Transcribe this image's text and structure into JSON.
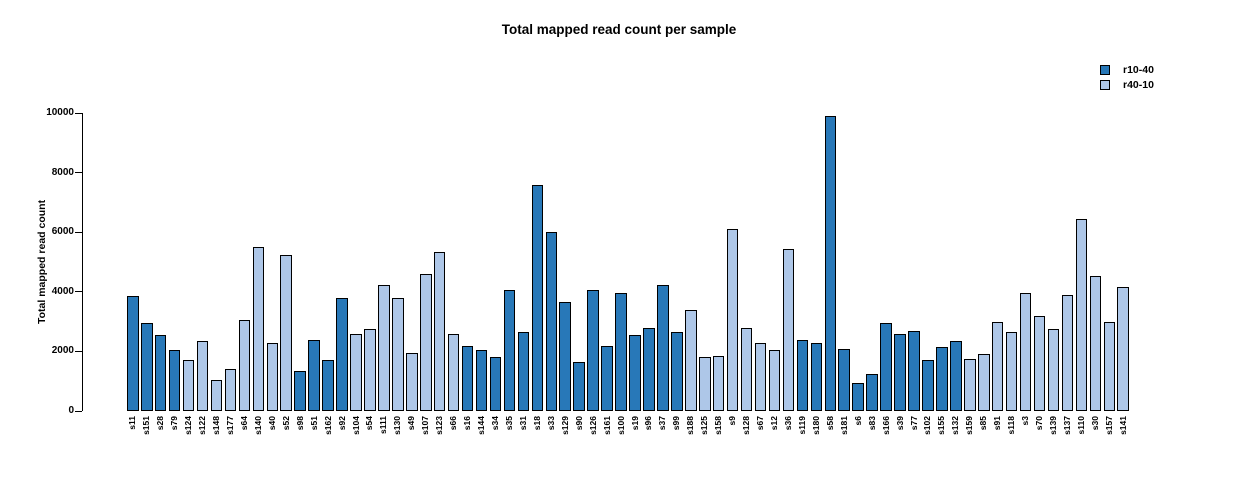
{
  "chart_data": {
    "type": "bar",
    "title": "Total mapped read count per sample",
    "ylabel": "Total mapped read count",
    "xlabel": "",
    "ylim": [
      0,
      10000
    ],
    "yticks": [
      0,
      2000,
      4000,
      6000,
      8000,
      10000
    ],
    "grid": false,
    "legend_position": "top-right",
    "series": [
      {
        "name": "r10-40",
        "color": "#2878b8"
      },
      {
        "name": "r40-10",
        "color": "#aec7e8"
      }
    ],
    "bars": [
      {
        "label": "s11",
        "value": 3850,
        "series": "r10-40"
      },
      {
        "label": "s151",
        "value": 2950,
        "series": "r10-40"
      },
      {
        "label": "s28",
        "value": 2550,
        "series": "r10-40"
      },
      {
        "label": "s79",
        "value": 2050,
        "series": "r10-40"
      },
      {
        "label": "s124",
        "value": 1700,
        "series": "r40-10"
      },
      {
        "label": "s122",
        "value": 2350,
        "series": "r40-10"
      },
      {
        "label": "s148",
        "value": 1050,
        "series": "r40-10"
      },
      {
        "label": "s177",
        "value": 1400,
        "series": "r40-10"
      },
      {
        "label": "s64",
        "value": 3050,
        "series": "r40-10"
      },
      {
        "label": "s140",
        "value": 5500,
        "series": "r40-10"
      },
      {
        "label": "s40",
        "value": 2300,
        "series": "r40-10"
      },
      {
        "label": "s52",
        "value": 5250,
        "series": "r40-10"
      },
      {
        "label": "s98",
        "value": 1350,
        "series": "r10-40"
      },
      {
        "label": "s51",
        "value": 2400,
        "series": "r10-40"
      },
      {
        "label": "s162",
        "value": 1700,
        "series": "r10-40"
      },
      {
        "label": "s92",
        "value": 3800,
        "series": "r10-40"
      },
      {
        "label": "s104",
        "value": 2600,
        "series": "r40-10"
      },
      {
        "label": "s54",
        "value": 2750,
        "series": "r40-10"
      },
      {
        "label": "s111",
        "value": 4250,
        "series": "r40-10"
      },
      {
        "label": "s130",
        "value": 3800,
        "series": "r40-10"
      },
      {
        "label": "s49",
        "value": 1950,
        "series": "r40-10"
      },
      {
        "label": "s107",
        "value": 4600,
        "series": "r40-10"
      },
      {
        "label": "s123",
        "value": 5350,
        "series": "r40-10"
      },
      {
        "label": "s66",
        "value": 2600,
        "series": "r40-10"
      },
      {
        "label": "s16",
        "value": 2200,
        "series": "r10-40"
      },
      {
        "label": "s144",
        "value": 2050,
        "series": "r10-40"
      },
      {
        "label": "s34",
        "value": 1800,
        "series": "r10-40"
      },
      {
        "label": "s35",
        "value": 4050,
        "series": "r10-40"
      },
      {
        "label": "s31",
        "value": 2650,
        "series": "r10-40"
      },
      {
        "label": "s18",
        "value": 7600,
        "series": "r10-40"
      },
      {
        "label": "s33",
        "value": 6000,
        "series": "r10-40"
      },
      {
        "label": "s129",
        "value": 3650,
        "series": "r10-40"
      },
      {
        "label": "s90",
        "value": 1650,
        "series": "r10-40"
      },
      {
        "label": "s126",
        "value": 4050,
        "series": "r10-40"
      },
      {
        "label": "s161",
        "value": 2200,
        "series": "r10-40"
      },
      {
        "label": "s100",
        "value": 3950,
        "series": "r10-40"
      },
      {
        "label": "s19",
        "value": 2550,
        "series": "r10-40"
      },
      {
        "label": "s96",
        "value": 2800,
        "series": "r10-40"
      },
      {
        "label": "s37",
        "value": 4250,
        "series": "r10-40"
      },
      {
        "label": "s99",
        "value": 2650,
        "series": "r10-40"
      },
      {
        "label": "s188",
        "value": 3400,
        "series": "r40-10"
      },
      {
        "label": "s125",
        "value": 1800,
        "series": "r40-10"
      },
      {
        "label": "s158",
        "value": 1850,
        "series": "r40-10"
      },
      {
        "label": "s9",
        "value": 6100,
        "series": "r40-10"
      },
      {
        "label": "s128",
        "value": 2800,
        "series": "r40-10"
      },
      {
        "label": "s67",
        "value": 2300,
        "series": "r40-10"
      },
      {
        "label": "s12",
        "value": 2050,
        "series": "r40-10"
      },
      {
        "label": "s36",
        "value": 5450,
        "series": "r40-10"
      },
      {
        "label": "s119",
        "value": 2400,
        "series": "r10-40"
      },
      {
        "label": "s180",
        "value": 2300,
        "series": "r10-40"
      },
      {
        "label": "s58",
        "value": 9900,
        "series": "r10-40"
      },
      {
        "label": "s181",
        "value": 2100,
        "series": "r10-40"
      },
      {
        "label": "s6",
        "value": 950,
        "series": "r10-40"
      },
      {
        "label": "s83",
        "value": 1250,
        "series": "r10-40"
      },
      {
        "label": "s166",
        "value": 2950,
        "series": "r10-40"
      },
      {
        "label": "s39",
        "value": 2600,
        "series": "r10-40"
      },
      {
        "label": "s77",
        "value": 2700,
        "series": "r10-40"
      },
      {
        "label": "s102",
        "value": 1700,
        "series": "r10-40"
      },
      {
        "label": "s155",
        "value": 2150,
        "series": "r10-40"
      },
      {
        "label": "s132",
        "value": 2350,
        "series": "r10-40"
      },
      {
        "label": "s159",
        "value": 1750,
        "series": "r40-10"
      },
      {
        "label": "s85",
        "value": 1900,
        "series": "r40-10"
      },
      {
        "label": "s91",
        "value": 3000,
        "series": "r40-10"
      },
      {
        "label": "s118",
        "value": 2650,
        "series": "r40-10"
      },
      {
        "label": "s3",
        "value": 3950,
        "series": "r40-10"
      },
      {
        "label": "s70",
        "value": 3200,
        "series": "r40-10"
      },
      {
        "label": "s139",
        "value": 2750,
        "series": "r40-10"
      },
      {
        "label": "s137",
        "value": 3900,
        "series": "r40-10"
      },
      {
        "label": "s110",
        "value": 6450,
        "series": "r40-10"
      },
      {
        "label": "s30",
        "value": 4550,
        "series": "r40-10"
      },
      {
        "label": "s157",
        "value": 3000,
        "series": "r40-10"
      },
      {
        "label": "s141",
        "value": 4150,
        "series": "r40-10"
      }
    ]
  }
}
